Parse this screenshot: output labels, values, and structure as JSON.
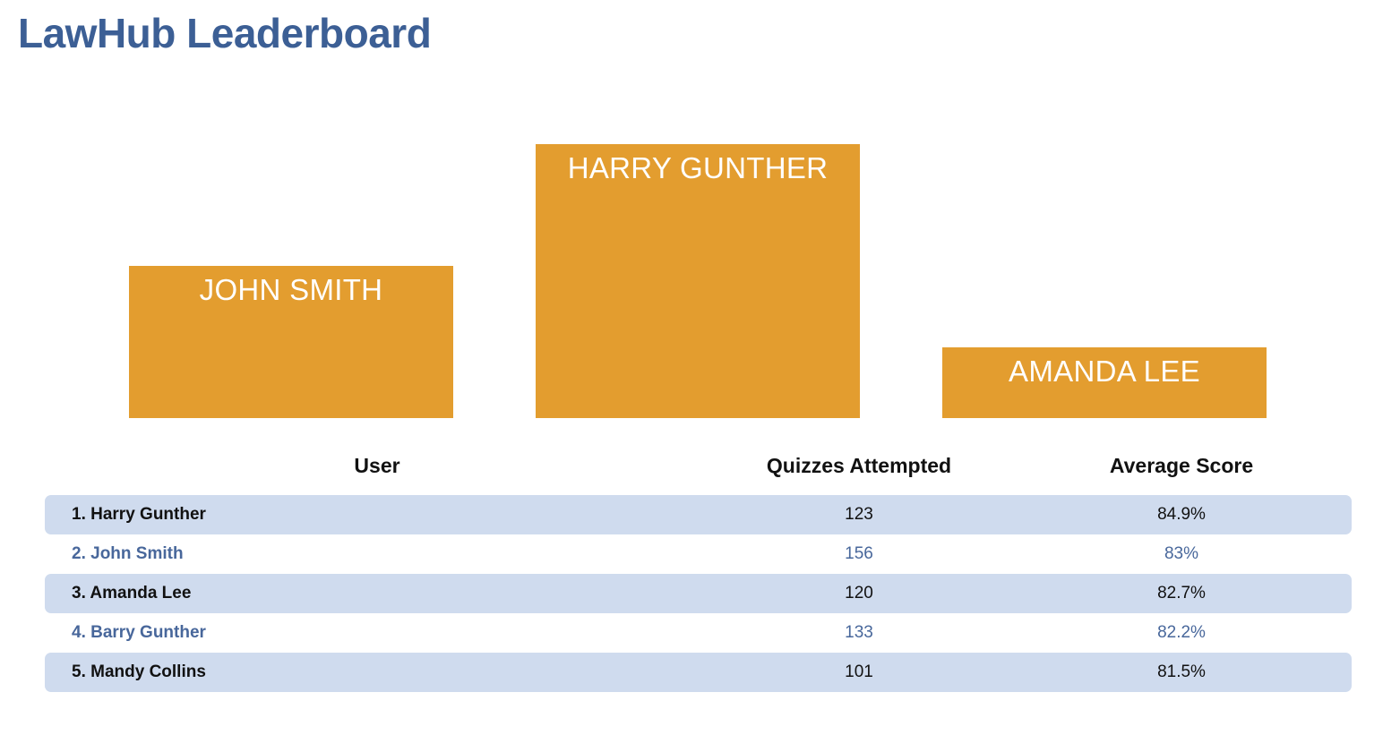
{
  "page": {
    "title": "LawHub Leaderboard"
  },
  "podium": {
    "first": {
      "name": "HARRY GUNTHER"
    },
    "second": {
      "name": "JOHN SMITH"
    },
    "third": {
      "name": "AMANDA LEE"
    },
    "color": "#e39d2f"
  },
  "table": {
    "headers": {
      "user": "User",
      "quizzes": "Quizzes Attempted",
      "score": "Average Score"
    },
    "rows": [
      {
        "user": "1. Harry Gunther",
        "quizzes": "123",
        "score": "84.9%"
      },
      {
        "user": "2. John Smith",
        "quizzes": "156",
        "score": "83%"
      },
      {
        "user": "3. Amanda Lee",
        "quizzes": "120",
        "score": "82.7%"
      },
      {
        "user": "4. Barry Gunther",
        "quizzes": "133",
        "score": "82.2%"
      },
      {
        "user": "5. Mandy Collins",
        "quizzes": "101",
        "score": "81.5%"
      }
    ]
  },
  "colors": {
    "title": "#3c5f95",
    "row_shaded": "#cfdbee",
    "row_plain_text": "#48679b"
  }
}
